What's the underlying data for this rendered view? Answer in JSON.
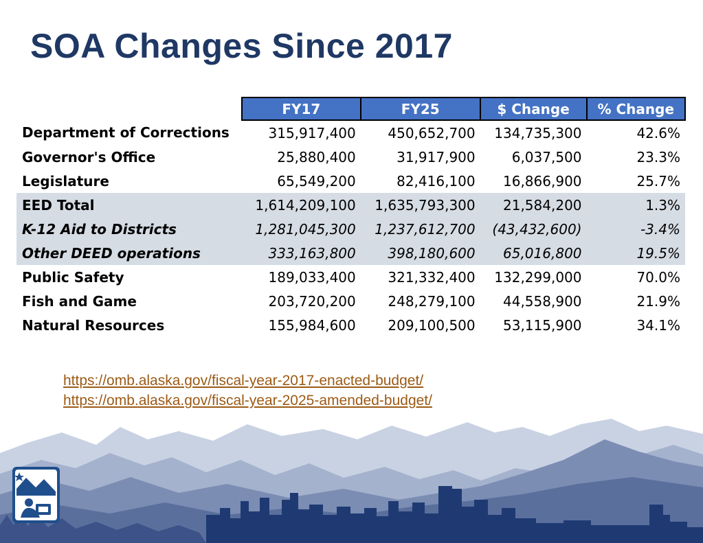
{
  "slide": {
    "title": "SOA Changes Since 2017"
  },
  "table": {
    "headers": [
      "FY17",
      "FY25",
      "$ Change",
      "% Change"
    ],
    "rows": [
      {
        "label": "Department of Corrections",
        "fy17": "315,917,400",
        "fy25": "450,652,700",
        "change": "134,735,300",
        "pct": "42.6%"
      },
      {
        "label": "Governor's Office",
        "fy17": "25,880,400",
        "fy25": "31,917,900",
        "change": "6,037,500",
        "pct": "23.3%"
      },
      {
        "label": "Legislature",
        "fy17": "65,549,200",
        "fy25": "82,416,100",
        "change": "16,866,900",
        "pct": "25.7%"
      },
      {
        "label": "EED Total",
        "fy17": "1,614,209,100",
        "fy25": "1,635,793,300",
        "change": "21,584,200",
        "pct": "1.3%"
      },
      {
        "label": "K-12 Aid to Districts",
        "fy17": "1,281,045,300",
        "fy25": "1,237,612,700",
        "change": "(43,432,600)",
        "pct": "-3.4%"
      },
      {
        "label": "Other DEED operations",
        "fy17": "333,163,800",
        "fy25": "398,180,600",
        "change": "65,016,800",
        "pct": "19.5%"
      },
      {
        "label": "Public Safety",
        "fy17": "189,033,400",
        "fy25": "321,332,400",
        "change": "132,299,000",
        "pct": "70.0%"
      },
      {
        "label": "Fish and Game",
        "fy17": "203,720,200",
        "fy25": "248,279,100",
        "change": "44,558,900",
        "pct": "21.9%"
      },
      {
        "label": "Natural Resources",
        "fy17": "155,984,600",
        "fy25": "209,100,500",
        "change": "53,115,900",
        "pct": "34.1%"
      }
    ]
  },
  "links": [
    "https://omb.alaska.gov/fiscal-year-2017-enacted-budget/",
    "https://omb.alaska.gov/fiscal-year-2025-amended-budget/"
  ],
  "colors": {
    "title": "#1f3864",
    "header_bg": "#4472c4",
    "shaded_row": "#d6dce4",
    "link": "#9c5a15",
    "skyline": "#1f3a73"
  },
  "icons": [
    "mountain-landscape",
    "city-skyline",
    "alaska-seal-logo"
  ]
}
